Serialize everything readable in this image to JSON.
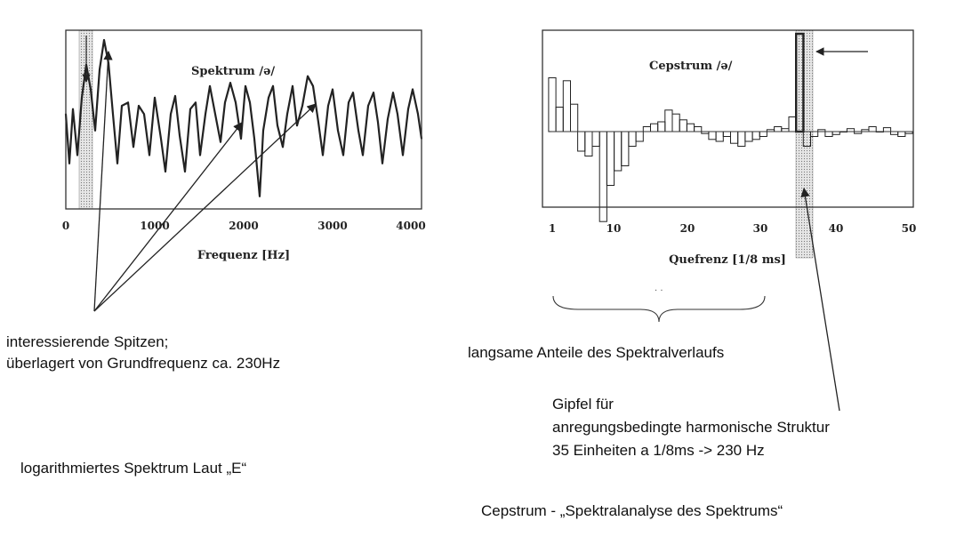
{
  "chart_data": [
    {
      "type": "line",
      "title": "Spektrum /ə/",
      "xlabel": "Frequenz [Hz]",
      "ylabel": "",
      "xlim": [
        0,
        4000
      ],
      "x_ticks": [
        "0",
        "1000",
        "2000",
        "3000",
        "4000"
      ],
      "highlight_band_hz": [
        180,
        300
      ],
      "x": [
        0,
        40,
        80,
        130,
        180,
        230,
        280,
        330,
        380,
        430,
        480,
        530,
        580,
        630,
        700,
        760,
        820,
        880,
        940,
        1000,
        1070,
        1120,
        1180,
        1230,
        1280,
        1340,
        1400,
        1460,
        1510,
        1570,
        1620,
        1680,
        1740,
        1790,
        1850,
        1910,
        1970,
        2020,
        2070,
        2120,
        2180,
        2220,
        2280,
        2330,
        2380,
        2440,
        2490,
        2550,
        2600,
        2660,
        2720,
        2780,
        2840,
        2890,
        2950,
        3000,
        3060,
        3120,
        3180,
        3230,
        3290,
        3340,
        3400,
        3460,
        3510,
        3560,
        3620,
        3680,
        3730,
        3790,
        3850,
        3900,
        3960,
        4000
      ],
      "values": [
        0.55,
        0.25,
        0.58,
        0.3,
        0.65,
        0.85,
        0.7,
        0.45,
        0.82,
        1.0,
        0.86,
        0.55,
        0.25,
        0.6,
        0.62,
        0.35,
        0.6,
        0.55,
        0.3,
        0.65,
        0.4,
        0.2,
        0.55,
        0.66,
        0.42,
        0.2,
        0.58,
        0.62,
        0.3,
        0.55,
        0.72,
        0.55,
        0.38,
        0.62,
        0.74,
        0.62,
        0.4,
        0.72,
        0.62,
        0.4,
        0.05,
        0.45,
        0.65,
        0.72,
        0.48,
        0.35,
        0.55,
        0.72,
        0.48,
        0.6,
        0.78,
        0.72,
        0.5,
        0.3,
        0.6,
        0.7,
        0.45,
        0.3,
        0.62,
        0.68,
        0.45,
        0.3,
        0.6,
        0.68,
        0.5,
        0.25,
        0.52,
        0.68,
        0.55,
        0.3,
        0.58,
        0.7,
        0.55,
        0.4
      ]
    },
    {
      "type": "bar",
      "title": "Cepstrum /ə/",
      "xlabel": "Quefrenz [1/8 ms]",
      "ylabel": "",
      "xlim": [
        1,
        50
      ],
      "x_ticks": [
        "1",
        "10",
        "20",
        "30",
        "40",
        "50"
      ],
      "highlight_band": [
        34.5,
        37
      ],
      "x": [
        1,
        2,
        3,
        4,
        5,
        6,
        7,
        8,
        9,
        10,
        11,
        12,
        13,
        14,
        15,
        16,
        17,
        18,
        19,
        20,
        21,
        22,
        23,
        24,
        25,
        26,
        27,
        28,
        29,
        30,
        31,
        32,
        33,
        34,
        35,
        36,
        37,
        38,
        39,
        40,
        41,
        42,
        43,
        44,
        45,
        46,
        47,
        48,
        49,
        50
      ],
      "values": [
        0.55,
        0.25,
        0.52,
        0.28,
        -0.2,
        -0.25,
        -0.15,
        -0.92,
        -0.55,
        -0.4,
        -0.35,
        -0.15,
        -0.1,
        0.05,
        0.08,
        0.1,
        0.22,
        0.18,
        0.12,
        0.08,
        0.05,
        -0.02,
        -0.08,
        -0.1,
        -0.05,
        -0.12,
        -0.15,
        -0.1,
        -0.08,
        -0.05,
        0.02,
        0.05,
        0.03,
        0.15,
        1.0,
        -0.15,
        -0.05,
        0.02,
        -0.05,
        -0.03,
        0.0,
        0.03,
        -0.02,
        0.02,
        0.05,
        0.0,
        0.04,
        -0.03,
        -0.05,
        -0.02
      ]
    }
  ],
  "annotations": {
    "peaks_label_line1": "interessierende Spitzen;",
    "peaks_label_line2": "überlagert von Grundfrequenz ca. 230Hz",
    "log_spectrum_label": "logarithmiertes Spektrum Laut  „E“",
    "slow_components_label": "langsame Anteile des Spektralverlaufs",
    "peak_label_line1": "Gipfel für",
    "peak_label_line2": "anregungsbedingte harmonische Struktur",
    "peak_label_line3": "35 Einheiten a 1/8ms -> 230 Hz",
    "cepstrum_caption": "Cepstrum - „Spektralanalyse des Spektrums“",
    "brace_marks": "· ·"
  },
  "colors": {
    "curve": "#222222",
    "band": "#cfcfcf",
    "frame": "#333333"
  }
}
